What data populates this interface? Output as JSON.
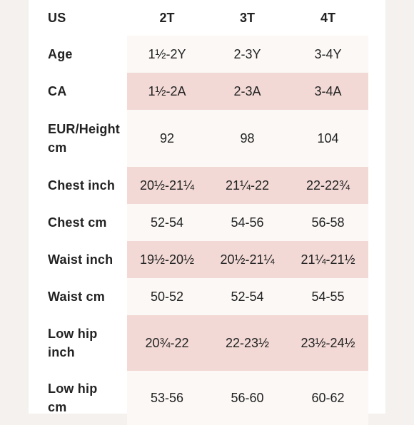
{
  "colors": {
    "page_bg": "#f4f1ef",
    "sheet_bg": "#ffffff",
    "band_light": "#fbf8f6",
    "band_pink": "#f2d9d5"
  },
  "table": {
    "header": {
      "label": "US",
      "cols": [
        "2T",
        "3T",
        "4T"
      ]
    },
    "rows": [
      {
        "label": "Age",
        "values": [
          "1½-2Y",
          "2-3Y",
          "3-4Y"
        ]
      },
      {
        "label": "CA",
        "values": [
          "1½-2A",
          "2-3A",
          "3-4A"
        ]
      },
      {
        "label": "EUR/Height cm",
        "values": [
          "92",
          "98",
          "104"
        ]
      },
      {
        "label": "Chest inch",
        "values": [
          "20½-21¼",
          "21¼-22",
          "22-22¾"
        ]
      },
      {
        "label": "Chest cm",
        "values": [
          "52-54",
          "54-56",
          "56-58"
        ]
      },
      {
        "label": "Waist inch",
        "values": [
          "19½-20½",
          "20½-21¼",
          "21¼-21½"
        ]
      },
      {
        "label": "Waist cm",
        "values": [
          "50-52",
          "52-54",
          "54-55"
        ]
      },
      {
        "label": "Low hip inch",
        "values": [
          "20¾-22",
          "22-23½",
          "23½-24½"
        ]
      },
      {
        "label": "Low hip cm",
        "values": [
          "53-56",
          "56-60",
          "60-62"
        ]
      }
    ]
  }
}
